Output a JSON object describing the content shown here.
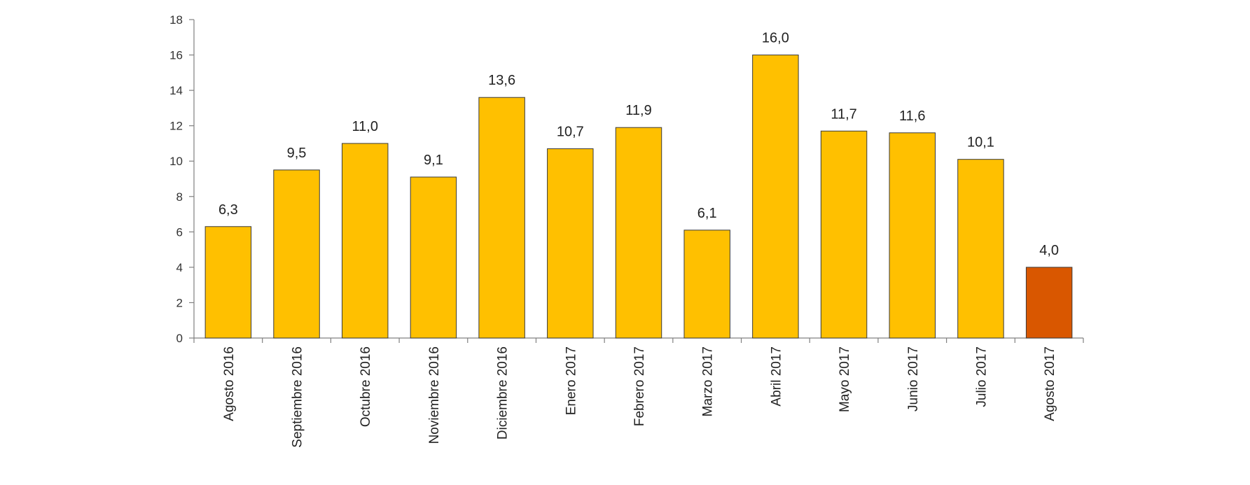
{
  "chart_data": {
    "type": "bar",
    "title": "",
    "xlabel": "",
    "ylabel": "",
    "ylim": [
      0,
      18
    ],
    "yticks": [
      0,
      2,
      4,
      6,
      8,
      10,
      12,
      14,
      16,
      18
    ],
    "grid": false,
    "legend": "none",
    "decimal_separator": ",",
    "categories": [
      "Agosto 2016",
      "Septiembre 2016",
      "Octubre 2016",
      "Noviembre 2016",
      "Diciembre 2016",
      "Enero 2017",
      "Febrero 2017",
      "Marzo 2017",
      "Abril 2017",
      "Mayo 2017",
      "Junio 2017",
      "Julio 2017",
      "Agosto 2017"
    ],
    "values": [
      6.3,
      9.5,
      11.0,
      9.1,
      13.6,
      10.7,
      11.9,
      6.1,
      16.0,
      11.7,
      11.6,
      10.1,
      4.0
    ],
    "colors": {
      "bar": "#FFC000",
      "highlight": "#D95700",
      "bar_stroke": "#3a3a3a",
      "axis": "#808080"
    },
    "highlight_index": 12
  }
}
